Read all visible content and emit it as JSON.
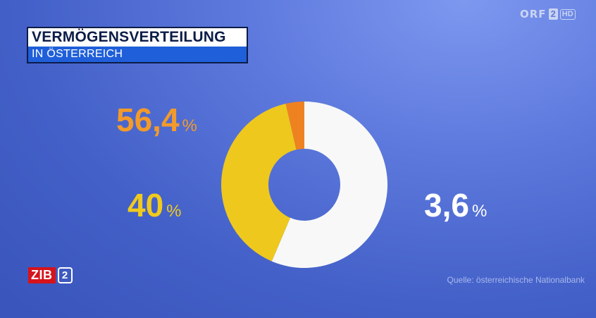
{
  "header": {
    "title": "VERMÖGENSVERTEILUNG",
    "subtitle": "IN ÖSTERREICH"
  },
  "channel_logo": {
    "word": "ORF",
    "number": "2",
    "quality": "HD"
  },
  "show_logo": {
    "word": "ZIB",
    "number": "2"
  },
  "source": "Quelle: österreichische Nationalbank",
  "chart_data": {
    "type": "pie",
    "donut": true,
    "slices": [
      {
        "value": 56.4,
        "label": "56,4",
        "unit": "%",
        "color": "#f8f8f8"
      },
      {
        "value": 40,
        "label": "40",
        "unit": "%",
        "color": "#eec81d"
      },
      {
        "value": 3.6,
        "label": "3,6",
        "unit": "%",
        "color": "#ef8220"
      }
    ]
  }
}
